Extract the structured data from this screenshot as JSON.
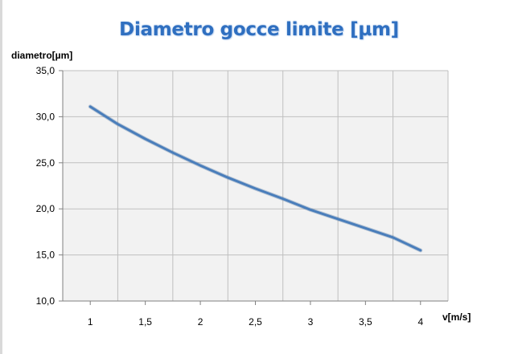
{
  "chart_data": {
    "type": "line",
    "title": "Diametro gocce limite [µm]",
    "xlabel": "v[m/s]",
    "ylabel": "diametro[µm]",
    "x_ticks": [
      "1",
      "1,5",
      "2",
      "2,5",
      "3",
      "3,5",
      "4"
    ],
    "y_ticks": [
      "10,0",
      "15,0",
      "20,0",
      "25,0",
      "30,0",
      "35,0"
    ],
    "xlim": [
      0.75,
      4.25
    ],
    "ylim": [
      10,
      35
    ],
    "grid": true,
    "legend": "none",
    "series": [
      {
        "x": [
          1.0,
          1.25,
          1.5,
          1.75,
          2.0,
          2.25,
          2.5,
          2.75,
          3.0,
          3.25,
          3.5,
          3.75,
          4.0
        ],
        "values": [
          31.1,
          29.2,
          27.6,
          26.1,
          24.7,
          23.4,
          22.2,
          21.1,
          19.9,
          18.9,
          17.9,
          16.9,
          15.5
        ]
      }
    ],
    "colors": {
      "line": "#4a7ebb",
      "plot_bg": "#f2f2f2",
      "grid": "#bfbfbf",
      "title": "#2f6fc0"
    }
  }
}
